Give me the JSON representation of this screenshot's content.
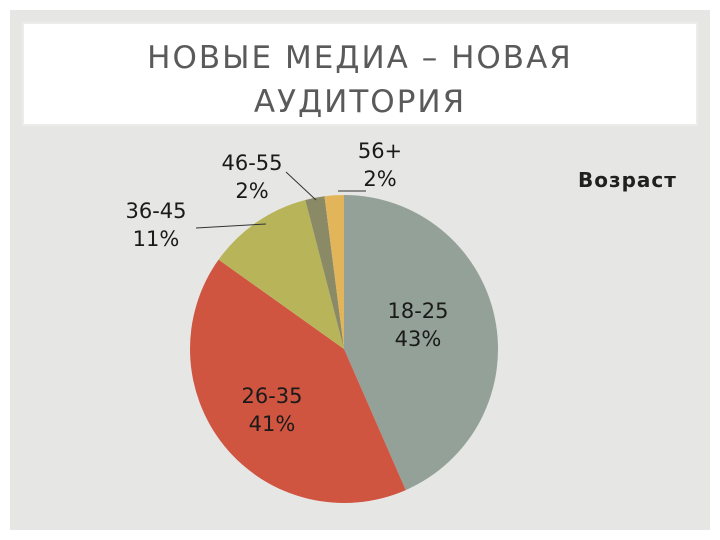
{
  "slide": {
    "title_line1": "НОВЫЕ МЕДИА – НОВАЯ",
    "title_line2": "АУДИТОРИЯ"
  },
  "chart_data": {
    "type": "pie",
    "title": "Возраст",
    "legend_title": "Возраст",
    "categories": [
      "18-25",
      "26-35",
      "36-45",
      "46-55",
      "56+"
    ],
    "values": [
      43,
      41,
      11,
      2,
      2
    ],
    "value_labels": [
      "43%",
      "41%",
      "11%",
      "2%",
      "2%"
    ],
    "colors": [
      "#93a198",
      "#cf5540",
      "#b8b45a",
      "#8a8a66",
      "#e3b55a"
    ],
    "start_angle_deg": -90,
    "direction": "clockwise"
  }
}
